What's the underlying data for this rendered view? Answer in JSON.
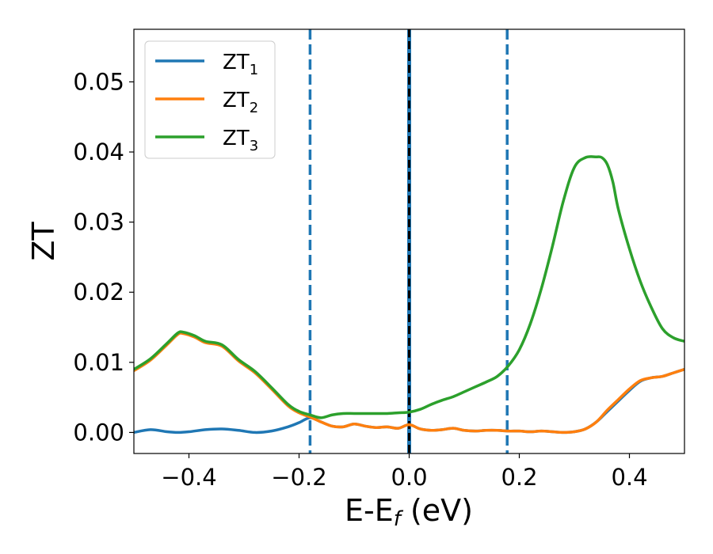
{
  "chart_data": {
    "type": "line",
    "title": "",
    "xlabel_main": "E-E",
    "xlabel_sub": "f",
    "xlabel_unit": " (eV)",
    "ylabel": "ZT",
    "xlim": [
      -0.5,
      0.5
    ],
    "ylim": [
      -0.003,
      0.0575
    ],
    "xticks": [
      -0.4,
      -0.2,
      0.0,
      0.2,
      0.4
    ],
    "xtick_labels": [
      "−0.4",
      "−0.2",
      "0.0",
      "0.2",
      "0.4"
    ],
    "yticks": [
      0.0,
      0.01,
      0.02,
      0.03,
      0.04,
      0.05
    ],
    "ytick_labels": [
      "0.00",
      "0.01",
      "0.02",
      "0.03",
      "0.04",
      "0.05"
    ],
    "grid": false,
    "legend_position": "top-left",
    "series": [
      {
        "name": "ZT",
        "subscript": "1",
        "color": "#1f77b4",
        "x": [
          -0.5,
          -0.47,
          -0.44,
          -0.42,
          -0.4,
          -0.37,
          -0.34,
          -0.31,
          -0.28,
          -0.25,
          -0.22,
          -0.2,
          -0.18,
          -0.16,
          -0.14,
          -0.12,
          -0.1,
          -0.08,
          -0.06,
          -0.04,
          -0.02,
          0.0,
          0.02,
          0.04,
          0.06,
          0.08,
          0.1,
          0.12,
          0.14,
          0.16,
          0.18,
          0.2,
          0.22,
          0.24,
          0.26,
          0.28,
          0.3,
          0.32,
          0.34,
          0.36,
          0.38,
          0.4,
          0.42,
          0.44,
          0.46,
          0.48,
          0.5
        ],
        "y": [
          0.0,
          0.0004,
          0.0001,
          0.0,
          0.0001,
          0.0004,
          0.0005,
          0.0003,
          0.0,
          0.0002,
          0.0008,
          0.0014,
          0.0021,
          0.0015,
          0.0009,
          0.0008,
          0.0012,
          0.0009,
          0.0007,
          0.0008,
          0.0006,
          0.0011,
          0.0005,
          0.0003,
          0.0004,
          0.0006,
          0.0003,
          0.0002,
          0.0003,
          0.0003,
          0.0002,
          0.0002,
          0.0001,
          0.0002,
          0.0001,
          0.0,
          0.0001,
          0.0005,
          0.0015,
          0.003,
          0.0045,
          0.006,
          0.0073,
          0.0078,
          0.008,
          0.0085,
          0.009
        ]
      },
      {
        "name": "ZT",
        "subscript": "2",
        "color": "#ff7f0e",
        "x": [
          -0.5,
          -0.47,
          -0.44,
          -0.42,
          -0.41,
          -0.39,
          -0.37,
          -0.34,
          -0.31,
          -0.28,
          -0.25,
          -0.22,
          -0.2,
          -0.18,
          -0.16,
          -0.14,
          -0.12,
          -0.1,
          -0.08,
          -0.06,
          -0.04,
          -0.02,
          0.0,
          0.02,
          0.04,
          0.06,
          0.08,
          0.1,
          0.12,
          0.14,
          0.16,
          0.18,
          0.2,
          0.22,
          0.24,
          0.26,
          0.28,
          0.3,
          0.32,
          0.34,
          0.36,
          0.38,
          0.4,
          0.42,
          0.44,
          0.46,
          0.48,
          0.5
        ],
        "y": [
          0.0088,
          0.0103,
          0.0125,
          0.014,
          0.0141,
          0.0136,
          0.0128,
          0.0123,
          0.0102,
          0.0085,
          0.0062,
          0.0038,
          0.0028,
          0.0022,
          0.0015,
          0.0009,
          0.0008,
          0.0012,
          0.0009,
          0.0007,
          0.0008,
          0.0006,
          0.0011,
          0.0005,
          0.0003,
          0.0004,
          0.0006,
          0.0003,
          0.0002,
          0.0003,
          0.0003,
          0.0002,
          0.0002,
          0.0001,
          0.0002,
          0.0001,
          0.0,
          0.0001,
          0.0005,
          0.0015,
          0.0032,
          0.0047,
          0.0062,
          0.0074,
          0.0078,
          0.008,
          0.0085,
          0.009
        ]
      },
      {
        "name": "ZT",
        "subscript": "3",
        "color": "#2ca02c",
        "x": [
          -0.5,
          -0.47,
          -0.44,
          -0.42,
          -0.41,
          -0.39,
          -0.37,
          -0.34,
          -0.31,
          -0.28,
          -0.25,
          -0.22,
          -0.2,
          -0.18,
          -0.16,
          -0.14,
          -0.12,
          -0.1,
          -0.08,
          -0.06,
          -0.04,
          -0.02,
          0.0,
          0.02,
          0.04,
          0.06,
          0.08,
          0.1,
          0.12,
          0.14,
          0.16,
          0.18,
          0.2,
          0.22,
          0.24,
          0.26,
          0.28,
          0.3,
          0.32,
          0.34,
          0.35,
          0.36,
          0.37,
          0.38,
          0.4,
          0.42,
          0.44,
          0.46,
          0.48,
          0.5
        ],
        "y": [
          0.009,
          0.0105,
          0.0127,
          0.0142,
          0.0143,
          0.0138,
          0.013,
          0.0125,
          0.0104,
          0.0087,
          0.0064,
          0.004,
          0.003,
          0.0025,
          0.0021,
          0.0025,
          0.0027,
          0.0027,
          0.0027,
          0.0027,
          0.0027,
          0.0028,
          0.0029,
          0.0033,
          0.004,
          0.0046,
          0.0051,
          0.0058,
          0.0065,
          0.0072,
          0.008,
          0.0095,
          0.0118,
          0.0155,
          0.0205,
          0.0265,
          0.033,
          0.0378,
          0.0392,
          0.0393,
          0.0392,
          0.0382,
          0.0357,
          0.0318,
          0.0262,
          0.0215,
          0.0178,
          0.0148,
          0.0135,
          0.013
        ]
      }
    ],
    "vlines": [
      {
        "x": -0.18,
        "style": "dashed",
        "color": "#1f77b4"
      },
      {
        "x": 0.0,
        "style": "dashed-overlay",
        "color": "#000000",
        "overlay_color": "#1f77b4"
      },
      {
        "x": 0.178,
        "style": "dashed",
        "color": "#1f77b4"
      }
    ]
  }
}
